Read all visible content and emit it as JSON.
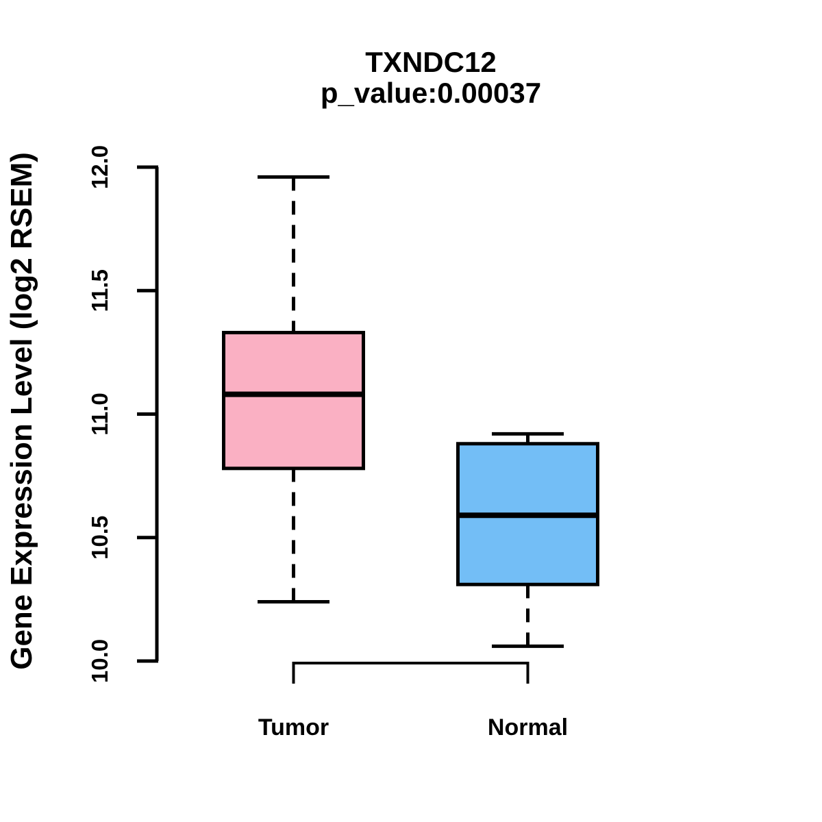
{
  "page": {
    "background": "#FFFFFF"
  },
  "chart_data": {
    "type": "boxplot",
    "title": "TXNDC12",
    "subtitle": "p_value:0.00037",
    "ylabel": "Gene Expression Level (log2 RSEM)",
    "xlabel": "",
    "ylim": [
      10.0,
      12.0
    ],
    "grid": false,
    "legend_position": "none",
    "yticks": [
      {
        "value": 12.0,
        "label": "12.0"
      },
      {
        "value": 11.5,
        "label": "11.5"
      },
      {
        "value": 11.0,
        "label": "11.0"
      },
      {
        "value": 10.5,
        "label": "10.5"
      },
      {
        "value": 10.0,
        "label": "10.0"
      }
    ],
    "categories": [
      "Tumor",
      "Normal"
    ],
    "series": [
      {
        "name": "Tumor",
        "fill_color": "#FAB0C3",
        "whisker_low": 10.24,
        "q1": 10.78,
        "median": 11.08,
        "q3": 11.33,
        "whisker_high": 11.96
      },
      {
        "name": "Normal",
        "fill_color": "#73BEF6",
        "whisker_low": 10.06,
        "q1": 10.31,
        "median": 10.59,
        "q3": 10.88,
        "whisker_high": 10.92
      }
    ],
    "line_color": "#000000",
    "whisker_style": "dashed",
    "bracket_between_groups": true
  }
}
